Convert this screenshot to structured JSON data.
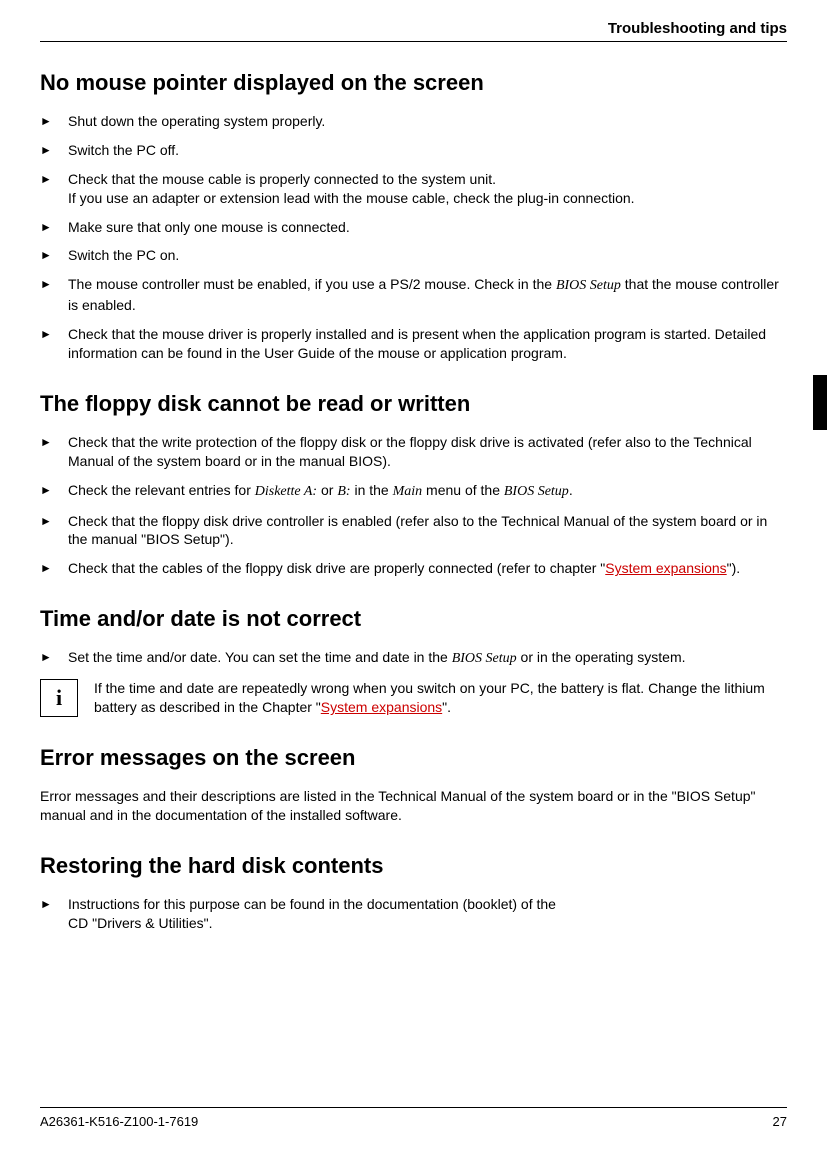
{
  "header": {
    "title": "Troubleshooting and tips"
  },
  "side_tab": {
    "bg": "#000000"
  },
  "sec1": {
    "title": "No mouse pointer displayed on the screen",
    "s1": "Shut down the operating system properly.",
    "s2": "Switch the PC off.",
    "s3a": "Check that the mouse cable is properly connected to the system unit.",
    "s3b": "If you use an adapter or extension lead with the mouse cable, check the plug-in connection.",
    "s4": "Make sure that only one mouse is connected.",
    "s5": "Switch the PC on.",
    "s6a": "The mouse controller must be enabled, if you use a PS/2 mouse. Check in the ",
    "s6i": "BIOS Setup",
    "s6b": " that the mouse controller is enabled.",
    "s7": "Check that the mouse driver is properly installed and is present when the application program is started. Detailed information can be found in the User Guide of the mouse or application program."
  },
  "sec2": {
    "title": "The floppy disk cannot be read or written",
    "s1": "Check that the write protection of the floppy disk or the floppy disk drive is activated (refer also to the Technical Manual of the system board or in the manual BIOS).",
    "s2a": "Check the relevant entries for ",
    "s2i1": "Diskette A:",
    "s2b": " or ",
    "s2i2": "B:",
    "s2c": " in the ",
    "s2i3": "Main",
    "s2d": " menu of the ",
    "s2i4": "BIOS Setup",
    "s2e": ".",
    "s3": "Check that the floppy disk drive controller is enabled (refer also to the Technical Manual of the system board or in the manual \"BIOS Setup\").",
    "s4a": "Check that the cables of the floppy disk drive are properly connected (refer to chapter \"",
    "s4link": "System expansions",
    "s4b": "\")."
  },
  "sec3": {
    "title": "Time and/or date is not correct",
    "s1a": "Set the time and/or date. You can set the time and date in the ",
    "s1i": "BIOS Setup",
    "s1b": " or in the operating system.",
    "info_icon": "i",
    "info_a": "If the time and date are repeatedly wrong when you switch on your PC, the battery is flat. Change the lithium battery as described in the Chapter \"",
    "info_link": "System expansions",
    "info_b": "\"."
  },
  "sec4": {
    "title": "Error messages on the screen",
    "p": "Error messages and their descriptions are listed in the Technical Manual of the system board or in the \"BIOS Setup\" manual and in the documentation of the installed software."
  },
  "sec5": {
    "title": "Restoring the hard disk contents",
    "s1a": "Instructions for this purpose can be found in the documentation (booklet) of the",
    "s1b": "CD \"Drivers & Utilities\"."
  },
  "footer": {
    "doc": "A26361-K516-Z100-1-7619",
    "page": "27"
  },
  "bullet": "►"
}
